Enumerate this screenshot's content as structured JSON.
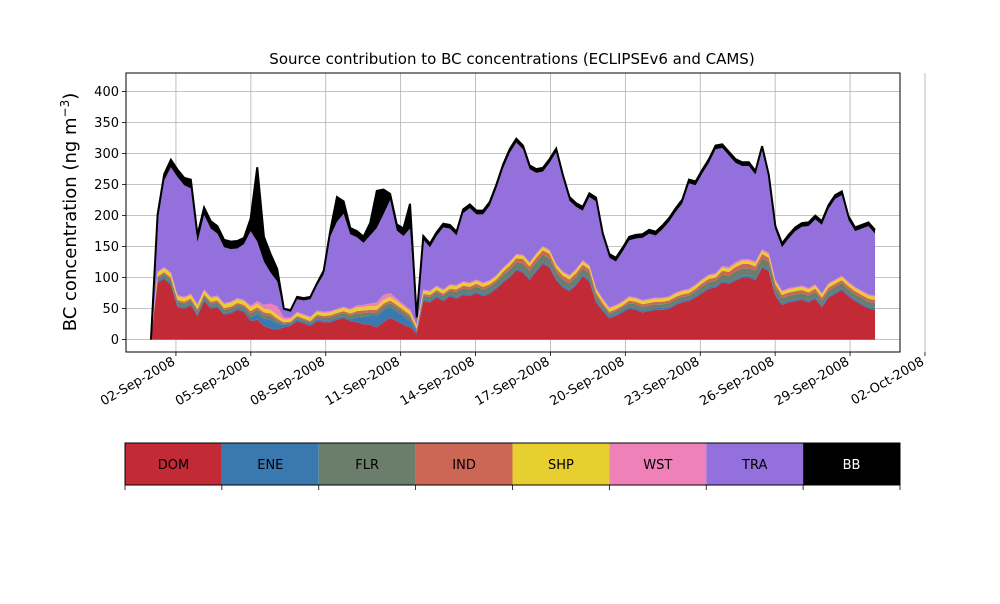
{
  "chart_data": {
    "type": "area",
    "title": "Source contribution to BC concentrations (ECLIPSEv6 and CAMS)",
    "ylabel_main": "BC concentration (ng m",
    "ylabel_sup": "−3",
    "ylabel_close": ")",
    "xlabel": "",
    "x_start": "2008-09-01",
    "x_end": "2008-09-30",
    "xlim": [
      "2008-08-31",
      "2008-10-01"
    ],
    "ylim": [
      -20,
      430
    ],
    "yticks": [
      0,
      50,
      100,
      150,
      200,
      250,
      300,
      350,
      400
    ],
    "xticks": [
      {
        "date": "2008-09-02",
        "label": "02-Sep-2008"
      },
      {
        "date": "2008-09-05",
        "label": "05-Sep-2008"
      },
      {
        "date": "2008-09-08",
        "label": "08-Sep-2008"
      },
      {
        "date": "2008-09-11",
        "label": "11-Sep-2008"
      },
      {
        "date": "2008-09-14",
        "label": "14-Sep-2008"
      },
      {
        "date": "2008-09-17",
        "label": "17-Sep-2008"
      },
      {
        "date": "2008-09-20",
        "label": "20-Sep-2008"
      },
      {
        "date": "2008-09-23",
        "label": "23-Sep-2008"
      },
      {
        "date": "2008-09-26",
        "label": "26-Sep-2008"
      },
      {
        "date": "2008-09-29",
        "label": "29-Sep-2008"
      },
      {
        "date": "2008-10-02",
        "label": "02-Oct-2008"
      }
    ],
    "grid": true,
    "total_line_color": "#000000",
    "series": [
      {
        "name": "DOM",
        "color": "#c22a35"
      },
      {
        "name": "ENE",
        "color": "#3a78b0"
      },
      {
        "name": "FLR",
        "color": "#6b7e6b"
      },
      {
        "name": "IND",
        "color": "#cc6655"
      },
      {
        "name": "SHP",
        "color": "#e6cf2e"
      },
      {
        "name": "WST",
        "color": "#f080b8"
      },
      {
        "name": "TRA",
        "color": "#9370db"
      },
      {
        "name": "BB",
        "color": "#000000"
      }
    ],
    "DOM": [
      0,
      92,
      98,
      88,
      52,
      50,
      55,
      38,
      62,
      50,
      52,
      40,
      42,
      48,
      45,
      30,
      32,
      22,
      18,
      16,
      20,
      22,
      30,
      26,
      22,
      30,
      28,
      28,
      32,
      35,
      30,
      28,
      25,
      24,
      20,
      28,
      35,
      30,
      24,
      20,
      10,
      62,
      60,
      68,
      62,
      70,
      66,
      72,
      70,
      75,
      70,
      74,
      82,
      92,
      100,
      112,
      108,
      96,
      110,
      122,
      116,
      96,
      84,
      78,
      88,
      102,
      94,
      60,
      46,
      34,
      38,
      44,
      50,
      48,
      44,
      46,
      48,
      48,
      50,
      56,
      60,
      62,
      68,
      75,
      82,
      84,
      92,
      90,
      95,
      100,
      100,
      96,
      116,
      110,
      70,
      56,
      60,
      62,
      64,
      60,
      66,
      52,
      68,
      74,
      80,
      70,
      62,
      56,
      50,
      48
    ],
    "ENE": [
      0,
      3,
      3,
      3,
      3,
      3,
      3,
      3,
      3,
      3,
      3,
      3,
      3,
      3,
      3,
      6,
      10,
      12,
      14,
      10,
      4,
      3,
      3,
      3,
      3,
      3,
      3,
      3,
      3,
      3,
      3,
      8,
      12,
      14,
      18,
      20,
      18,
      16,
      14,
      10,
      3,
      3,
      3,
      3,
      3,
      3,
      3,
      3,
      3,
      3,
      3,
      3,
      3,
      3,
      3,
      3,
      3,
      3,
      3,
      3,
      3,
      3,
      3,
      3,
      3,
      3,
      3,
      3,
      3,
      3,
      3,
      3,
      3,
      3,
      3,
      3,
      3,
      3,
      3,
      3,
      3,
      3,
      3,
      3,
      3,
      3,
      3,
      3,
      3,
      3,
      3,
      3,
      3,
      3,
      3,
      3,
      3,
      3,
      3,
      3,
      3,
      3,
      3,
      3,
      3,
      3,
      3,
      3,
      3,
      3
    ],
    "FLR": [
      0,
      4,
      5,
      6,
      6,
      5,
      5,
      5,
      5,
      5,
      5,
      5,
      5,
      5,
      5,
      6,
      6,
      6,
      6,
      5,
      2,
      2,
      3,
      3,
      3,
      4,
      4,
      5,
      5,
      5,
      6,
      6,
      6,
      6,
      6,
      6,
      6,
      6,
      6,
      6,
      3,
      6,
      6,
      6,
      6,
      6,
      8,
      8,
      8,
      8,
      8,
      8,
      8,
      9,
      10,
      10,
      12,
      12,
      12,
      12,
      12,
      10,
      10,
      10,
      10,
      10,
      10,
      8,
      6,
      5,
      5,
      5,
      6,
      6,
      6,
      6,
      6,
      6,
      6,
      6,
      6,
      6,
      7,
      8,
      8,
      8,
      10,
      10,
      12,
      12,
      12,
      12,
      12,
      12,
      10,
      8,
      8,
      8,
      8,
      8,
      8,
      8,
      8,
      8,
      8,
      8,
      8,
      8,
      8,
      8
    ],
    "IND": [
      0,
      3,
      3,
      3,
      3,
      3,
      3,
      3,
      3,
      3,
      3,
      3,
      3,
      3,
      3,
      4,
      4,
      4,
      4,
      3,
      2,
      2,
      2,
      2,
      2,
      3,
      3,
      3,
      3,
      3,
      3,
      4,
      4,
      4,
      4,
      4,
      4,
      4,
      4,
      4,
      2,
      3,
      3,
      3,
      3,
      3,
      4,
      4,
      4,
      4,
      4,
      4,
      4,
      5,
      6,
      6,
      7,
      7,
      7,
      7,
      7,
      6,
      6,
      6,
      6,
      6,
      6,
      5,
      4,
      3,
      3,
      3,
      4,
      4,
      4,
      4,
      4,
      4,
      4,
      4,
      4,
      4,
      4,
      5,
      5,
      5,
      6,
      6,
      7,
      7,
      7,
      7,
      7,
      7,
      6,
      5,
      5,
      5,
      5,
      5,
      5,
      5,
      5,
      5,
      5,
      5,
      5,
      5,
      5,
      5
    ],
    "SHP": [
      0,
      6,
      6,
      6,
      6,
      6,
      6,
      6,
      6,
      6,
      6,
      6,
      6,
      6,
      6,
      6,
      6,
      6,
      6,
      6,
      4,
      4,
      5,
      5,
      5,
      5,
      5,
      5,
      5,
      5,
      6,
      6,
      6,
      6,
      6,
      6,
      6,
      6,
      6,
      6,
      4,
      5,
      5,
      5,
      5,
      5,
      5,
      5,
      5,
      5,
      5,
      5,
      5,
      5,
      5,
      5,
      5,
      5,
      5,
      5,
      5,
      5,
      5,
      5,
      5,
      5,
      5,
      5,
      5,
      5,
      5,
      5,
      5,
      5,
      5,
      5,
      5,
      5,
      5,
      5,
      5,
      5,
      5,
      5,
      5,
      5,
      5,
      5,
      5,
      5,
      5,
      5,
      5,
      5,
      5,
      5,
      5,
      5,
      5,
      5,
      5,
      5,
      5,
      5,
      5,
      5,
      5,
      5,
      5,
      5
    ],
    "WST": [
      0,
      2,
      2,
      2,
      2,
      2,
      2,
      2,
      2,
      2,
      2,
      2,
      2,
      2,
      2,
      3,
      4,
      6,
      10,
      14,
      4,
      2,
      2,
      2,
      2,
      2,
      2,
      2,
      2,
      2,
      2,
      3,
      3,
      4,
      6,
      8,
      6,
      4,
      3,
      3,
      2,
      2,
      2,
      2,
      2,
      2,
      2,
      2,
      2,
      2,
      2,
      2,
      2,
      2,
      2,
      2,
      2,
      2,
      2,
      2,
      2,
      2,
      2,
      2,
      2,
      2,
      2,
      2,
      2,
      2,
      2,
      2,
      2,
      2,
      2,
      2,
      2,
      2,
      2,
      2,
      2,
      2,
      2,
      2,
      2,
      2,
      3,
      3,
      3,
      3,
      3,
      3,
      3,
      3,
      3,
      2,
      2,
      2,
      2,
      2,
      2,
      2,
      2,
      2,
      2,
      2,
      2,
      2,
      2,
      2
    ],
    "TRA": [
      0,
      80,
      140,
      170,
      190,
      180,
      170,
      100,
      120,
      110,
      100,
      90,
      85,
      80,
      90,
      120,
      96,
      70,
      50,
      40,
      12,
      10,
      20,
      22,
      28,
      40,
      60,
      120,
      140,
      150,
      120,
      110,
      100,
      110,
      120,
      130,
      150,
      110,
      110,
      130,
      8,
      80,
      70,
      80,
      100,
      90,
      80,
      110,
      120,
      105,
      110,
      120,
      140,
      160,
      175,
      180,
      170,
      150,
      130,
      120,
      140,
      180,
      150,
      120,
      100,
      80,
      110,
      140,
      100,
      80,
      70,
      80,
      90,
      95,
      100,
      105,
      100,
      110,
      120,
      130,
      140,
      170,
      160,
      170,
      180,
      200,
      190,
      180,
      160,
      150,
      150,
      140,
      160,
      120,
      80,
      70,
      80,
      90,
      95,
      100,
      105,
      110,
      120,
      130,
      130,
      100,
      90,
      100,
      110,
      100
    ],
    "BB": [
      0,
      12,
      10,
      12,
      12,
      12,
      14,
      12,
      12,
      12,
      12,
      12,
      12,
      12,
      10,
      20,
      120,
      40,
      30,
      20,
      2,
      2,
      4,
      4,
      4,
      4,
      6,
      10,
      40,
      20,
      10,
      10,
      10,
      20,
      60,
      40,
      10,
      10,
      12,
      40,
      4,
      6,
      6,
      6,
      6,
      6,
      6,
      6,
      6,
      6,
      6,
      6,
      6,
      6,
      6,
      6,
      6,
      6,
      6,
      6,
      6,
      6,
      6,
      6,
      6,
      6,
      6,
      6,
      6,
      6,
      6,
      6,
      6,
      6,
      6,
      6,
      6,
      6,
      6,
      6,
      6,
      6,
      6,
      6,
      6,
      6,
      6,
      6,
      6,
      6,
      6,
      6,
      6,
      6,
      6,
      6,
      6,
      6,
      6,
      6,
      6,
      6,
      6,
      6,
      6,
      6,
      6,
      6,
      6,
      6
    ]
  },
  "legend": {
    "items": [
      {
        "name": "DOM",
        "color": "#c22a35",
        "text_color": "#000000"
      },
      {
        "name": "ENE",
        "color": "#3a78b0",
        "text_color": "#000000"
      },
      {
        "name": "FLR",
        "color": "#6b7e6b",
        "text_color": "#000000"
      },
      {
        "name": "IND",
        "color": "#cc6655",
        "text_color": "#000000"
      },
      {
        "name": "SHP",
        "color": "#e6cf2e",
        "text_color": "#000000"
      },
      {
        "name": "WST",
        "color": "#f080b8",
        "text_color": "#000000"
      },
      {
        "name": "TRA",
        "color": "#9370db",
        "text_color": "#000000"
      },
      {
        "name": "BB",
        "color": "#000000",
        "text_color": "#ffffff"
      }
    ]
  }
}
